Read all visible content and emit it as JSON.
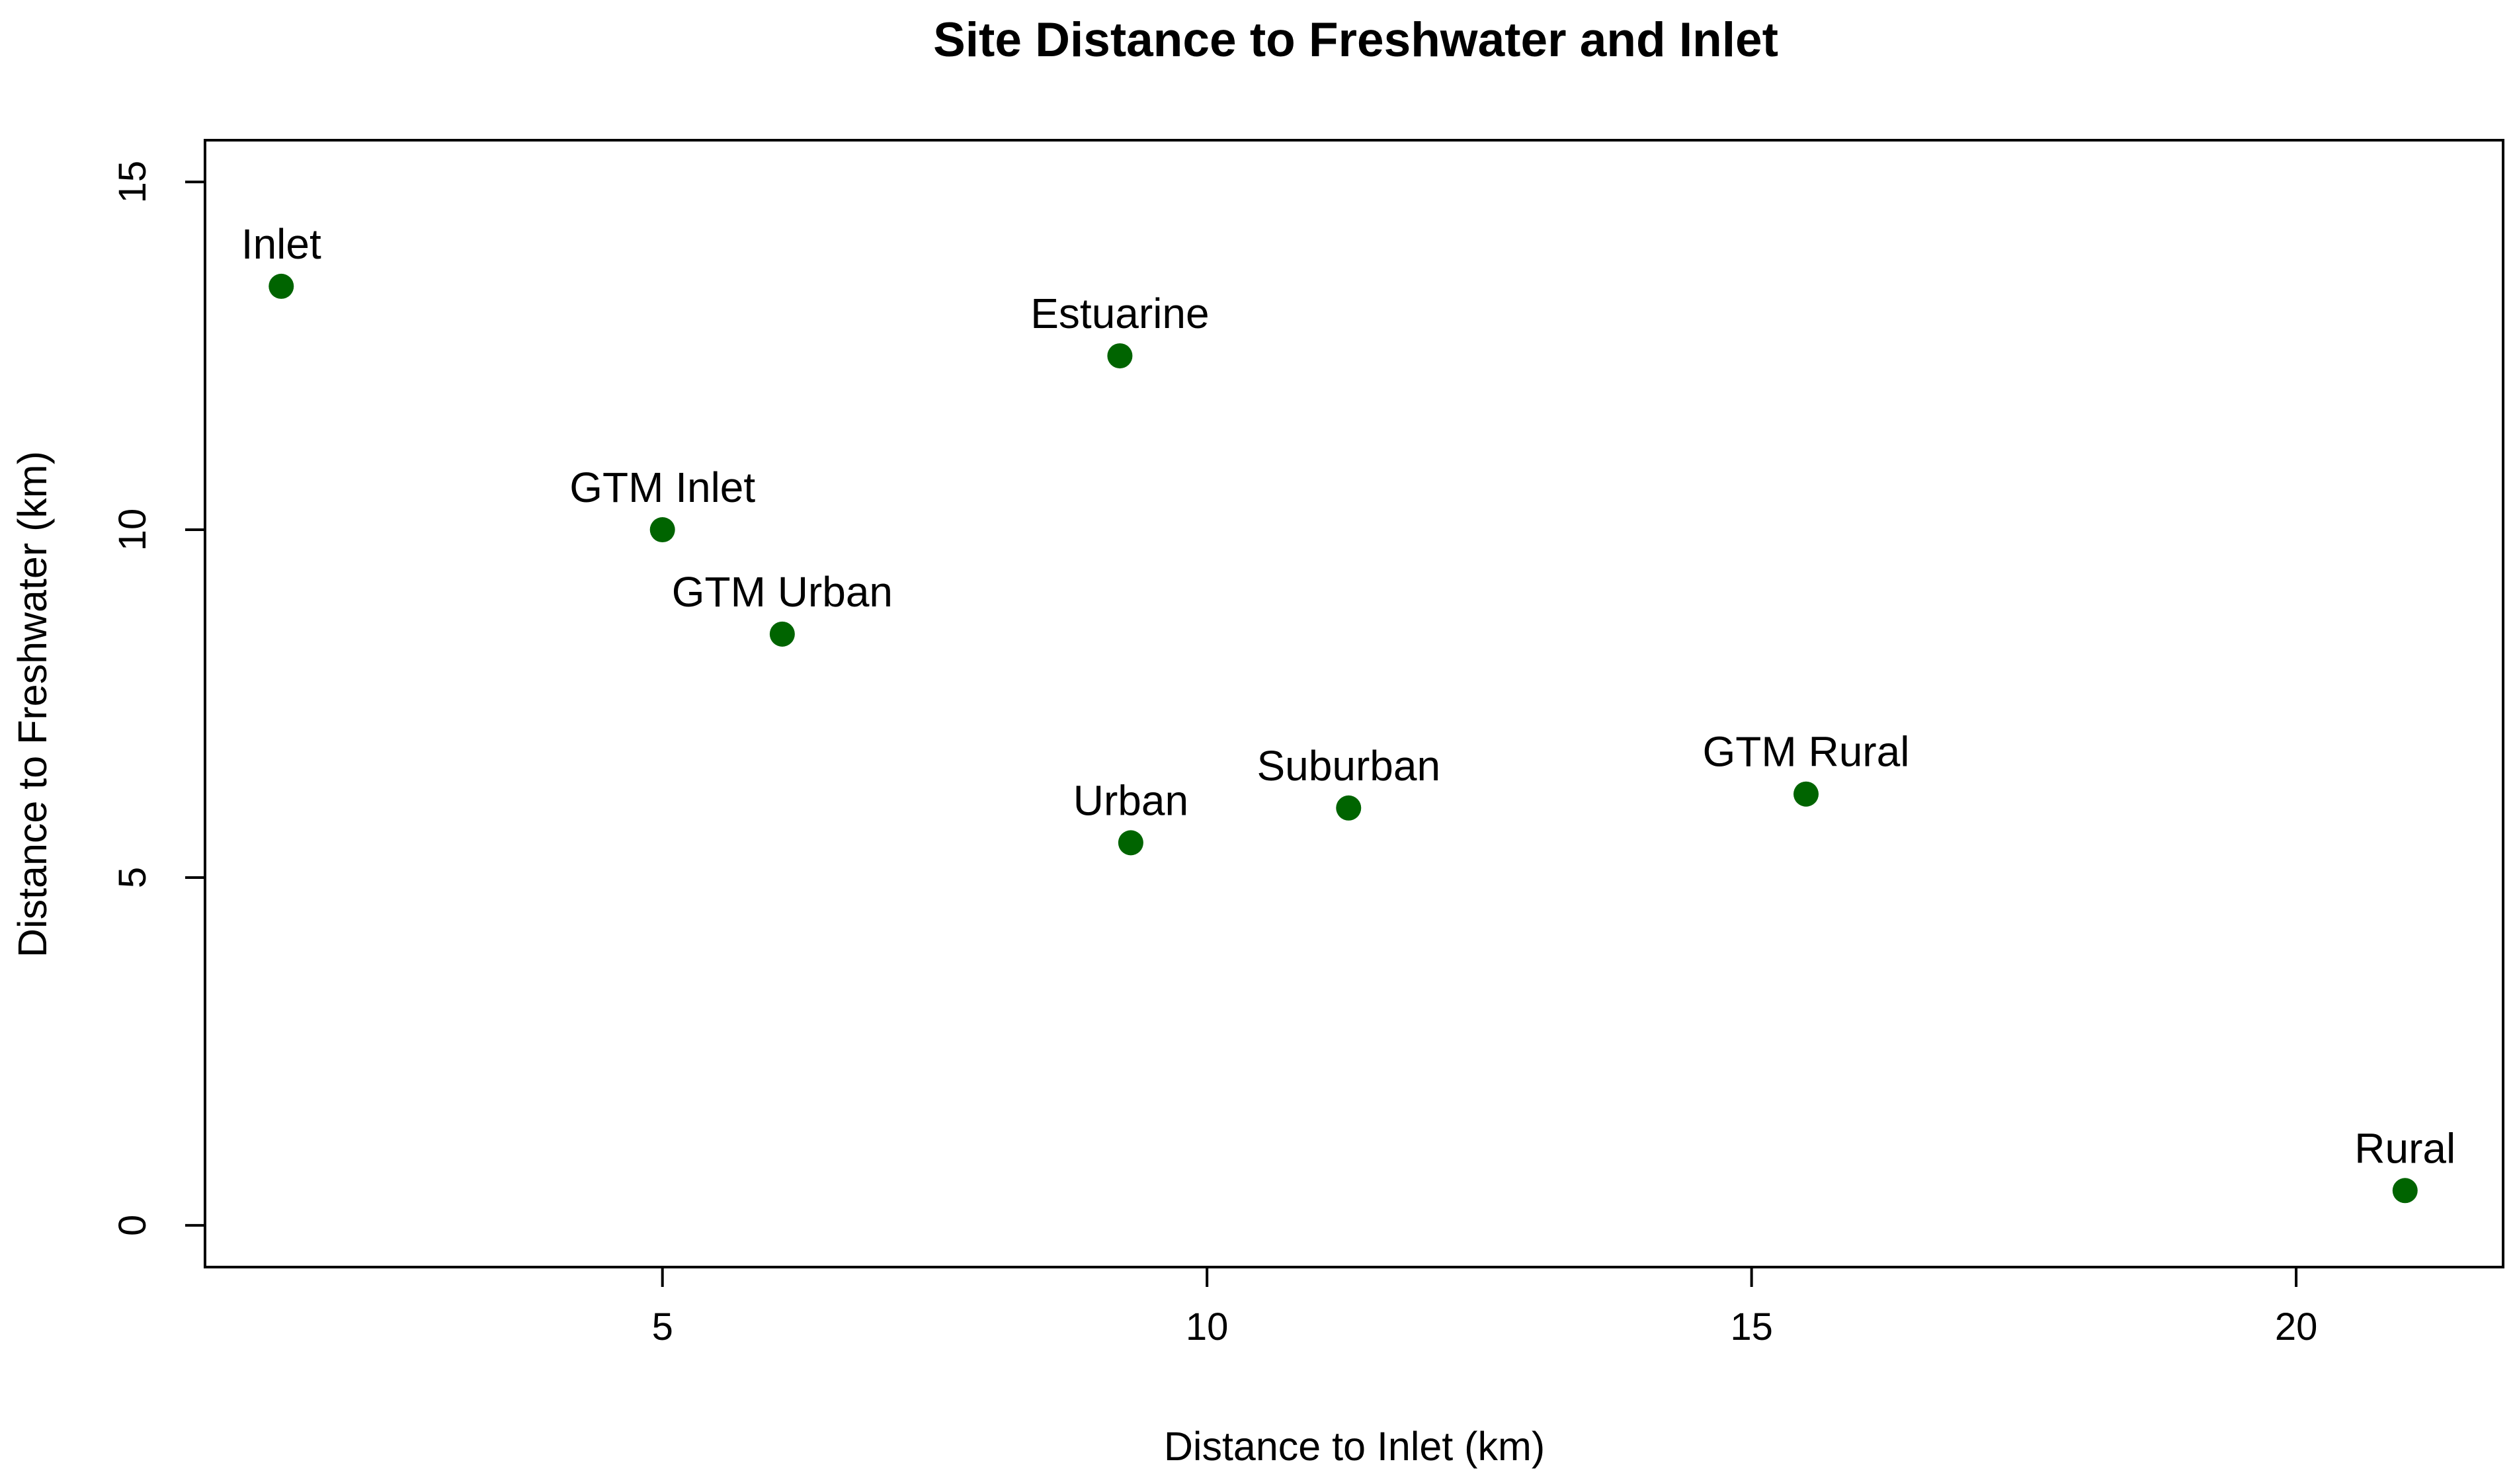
{
  "chart_data": {
    "type": "scatter",
    "title": "Site Distance to Freshwater and Inlet",
    "xlabel": "Distance to Inlet (km)",
    "ylabel": "Distance to Freshwater (km)",
    "xlim": [
      0.8,
      21.9
    ],
    "ylim": [
      -0.6,
      15.6
    ],
    "x_ticks": [
      5,
      10,
      15,
      20
    ],
    "y_ticks": [
      0,
      5,
      10,
      15
    ],
    "grid": false,
    "legend": "none",
    "point_color": "#006400",
    "points": [
      {
        "label": "Inlet",
        "x": 1.5,
        "y": 13.5
      },
      {
        "label": "Estuarine",
        "x": 9.2,
        "y": 12.5
      },
      {
        "label": "GTM Inlet",
        "x": 5.0,
        "y": 10.0
      },
      {
        "label": "GTM Urban",
        "x": 6.1,
        "y": 8.5
      },
      {
        "label": "Urban",
        "x": 9.3,
        "y": 5.5
      },
      {
        "label": "Suburban",
        "x": 11.3,
        "y": 6.0
      },
      {
        "label": "GTM Rural",
        "x": 15.5,
        "y": 6.2
      },
      {
        "label": "Rural",
        "x": 21.0,
        "y": 0.5
      }
    ]
  }
}
